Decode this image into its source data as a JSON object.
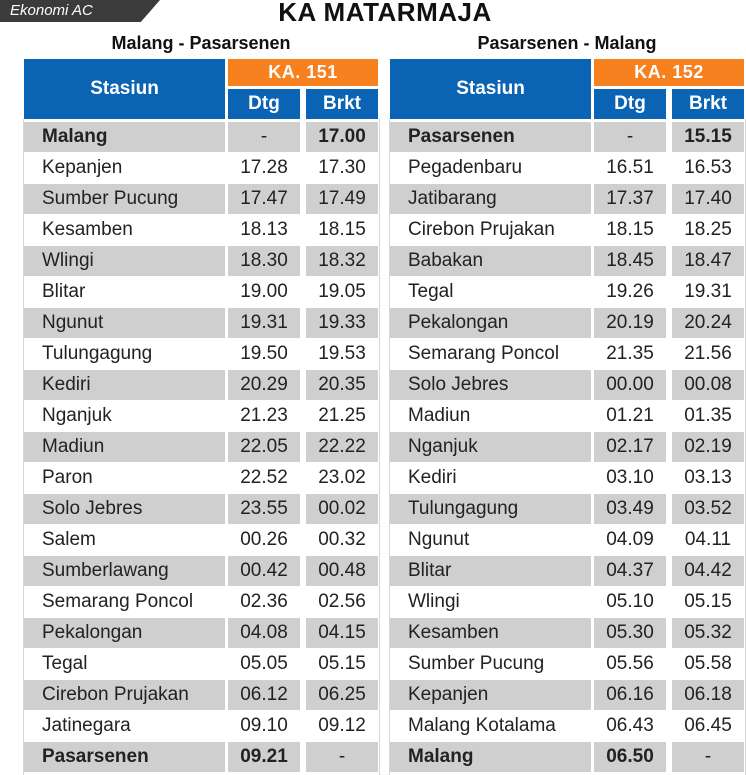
{
  "header": {
    "tag": "Ekonomi AC",
    "title": "KA MATARMAJA"
  },
  "colors": {
    "blue_header": "#0b63b3",
    "orange_train": "#f7801f",
    "row_shaded": "#cfcfcf",
    "tag_bg": "#3b3b3b"
  },
  "left": {
    "route": "Malang - Pasarsenen",
    "train": "KA. 151",
    "col_station": "Stasiun",
    "col_arr": "Dtg",
    "col_dep": "Brkt",
    "rows": [
      {
        "station": "Malang",
        "arr": "-",
        "dep": "17.00"
      },
      {
        "station": "Kepanjen",
        "arr": "17.28",
        "dep": "17.30"
      },
      {
        "station": "Sumber Pucung",
        "arr": "17.47",
        "dep": "17.49"
      },
      {
        "station": "Kesamben",
        "arr": "18.13",
        "dep": "18.15"
      },
      {
        "station": "Wlingi",
        "arr": "18.30",
        "dep": "18.32"
      },
      {
        "station": "Blitar",
        "arr": "19.00",
        "dep": "19.05"
      },
      {
        "station": "Ngunut",
        "arr": "19.31",
        "dep": "19.33"
      },
      {
        "station": "Tulungagung",
        "arr": "19.50",
        "dep": "19.53"
      },
      {
        "station": "Kediri",
        "arr": "20.29",
        "dep": "20.35"
      },
      {
        "station": "Nganjuk",
        "arr": "21.23",
        "dep": "21.25"
      },
      {
        "station": "Madiun",
        "arr": "22.05",
        "dep": "22.22"
      },
      {
        "station": "Paron",
        "arr": "22.52",
        "dep": "23.02"
      },
      {
        "station": "Solo Jebres",
        "arr": "23.55",
        "dep": "00.02"
      },
      {
        "station": "Salem",
        "arr": "00.26",
        "dep": "00.32"
      },
      {
        "station": "Sumberlawang",
        "arr": "00.42",
        "dep": "00.48"
      },
      {
        "station": "Semarang Poncol",
        "arr": "02.36",
        "dep": "02.56"
      },
      {
        "station": "Pekalongan",
        "arr": "04.08",
        "dep": "04.15"
      },
      {
        "station": "Tegal",
        "arr": "05.05",
        "dep": "05.15"
      },
      {
        "station": "Cirebon Prujakan",
        "arr": "06.12",
        "dep": "06.25"
      },
      {
        "station": "Jatinegara",
        "arr": "09.10",
        "dep": "09.12"
      },
      {
        "station": "Pasarsenen",
        "arr": "09.21",
        "dep": "-"
      }
    ]
  },
  "right": {
    "route": "Pasarsenen - Malang",
    "train": "KA. 152",
    "col_station": "Stasiun",
    "col_arr": "Dtg",
    "col_dep": "Brkt",
    "rows": [
      {
        "station": "Pasarsenen",
        "arr": "-",
        "dep": "15.15"
      },
      {
        "station": "Pegadenbaru",
        "arr": "16.51",
        "dep": "16.53"
      },
      {
        "station": "Jatibarang",
        "arr": "17.37",
        "dep": "17.40"
      },
      {
        "station": "Cirebon Prujakan",
        "arr": "18.15",
        "dep": "18.25"
      },
      {
        "station": "Babakan",
        "arr": "18.45",
        "dep": "18.47"
      },
      {
        "station": "Tegal",
        "arr": "19.26",
        "dep": "19.31"
      },
      {
        "station": "Pekalongan",
        "arr": "20.19",
        "dep": "20.24"
      },
      {
        "station": "Semarang Poncol",
        "arr": "21.35",
        "dep": "21.56"
      },
      {
        "station": "Solo Jebres",
        "arr": "00.00",
        "dep": "00.08"
      },
      {
        "station": "Madiun",
        "arr": "01.21",
        "dep": "01.35"
      },
      {
        "station": "Nganjuk",
        "arr": "02.17",
        "dep": "02.19"
      },
      {
        "station": "Kediri",
        "arr": "03.10",
        "dep": "03.13"
      },
      {
        "station": "Tulungagung",
        "arr": "03.49",
        "dep": "03.52"
      },
      {
        "station": "Ngunut",
        "arr": "04.09",
        "dep": "04.11"
      },
      {
        "station": "Blitar",
        "arr": "04.37",
        "dep": "04.42"
      },
      {
        "station": "Wlingi",
        "arr": "05.10",
        "dep": "05.15"
      },
      {
        "station": "Kesamben",
        "arr": "05.30",
        "dep": "05.32"
      },
      {
        "station": "Sumber Pucung",
        "arr": "05.56",
        "dep": "05.58"
      },
      {
        "station": "Kepanjen",
        "arr": "06.16",
        "dep": "06.18"
      },
      {
        "station": "Malang Kotalama",
        "arr": "06.43",
        "dep": "06.45"
      },
      {
        "station": "Malang",
        "arr": "06.50",
        "dep": "-"
      }
    ]
  }
}
